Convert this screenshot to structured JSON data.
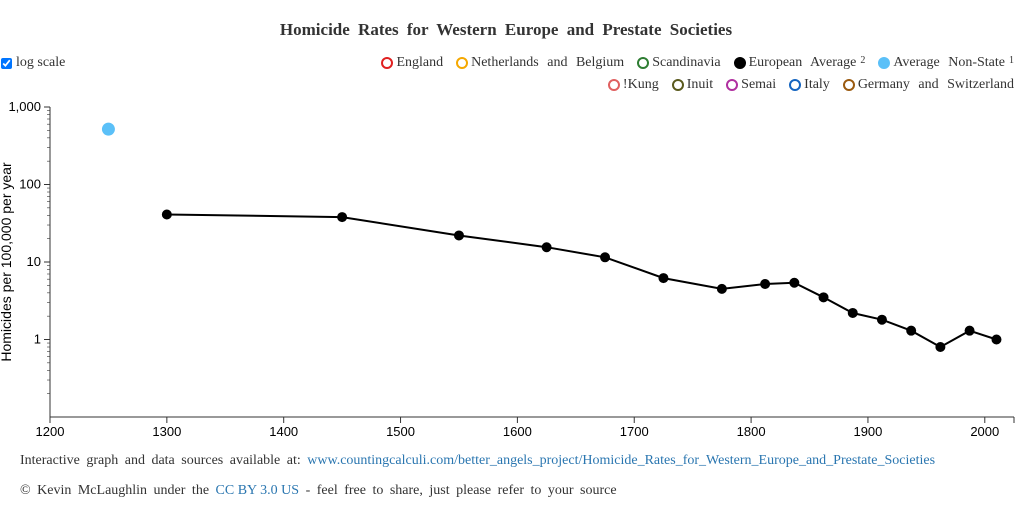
{
  "chart_data": {
    "type": "scatter",
    "title": "Homicide Rates for Western Europe and Prestate Societies",
    "ylabel": "Homicides per 100,000 per year",
    "xlabel": "",
    "xlim": [
      1200,
      2025
    ],
    "ylim": [
      0.1,
      1000
    ],
    "yscale": "log",
    "x_ticks": [
      "1200",
      "1300",
      "1400",
      "1500",
      "1600",
      "1700",
      "1800",
      "1900",
      "2000"
    ],
    "y_ticks": [
      {
        "value": 1000,
        "label": "1,000"
      },
      {
        "value": 100,
        "label": "100"
      },
      {
        "value": 10,
        "label": "10"
      },
      {
        "value": 1,
        "label": "1"
      }
    ],
    "series": [
      {
        "name": "European Average",
        "note": "2",
        "color": "#000000",
        "filled": true,
        "line": true,
        "points": [
          {
            "x": 1300,
            "y": 41
          },
          {
            "x": 1450,
            "y": 38
          },
          {
            "x": 1550,
            "y": 22
          },
          {
            "x": 1625,
            "y": 15.5
          },
          {
            "x": 1675,
            "y": 11.5
          },
          {
            "x": 1725,
            "y": 6.2
          },
          {
            "x": 1775,
            "y": 4.5
          },
          {
            "x": 1812,
            "y": 5.2
          },
          {
            "x": 1837,
            "y": 5.4
          },
          {
            "x": 1862,
            "y": 3.5
          },
          {
            "x": 1887,
            "y": 2.2
          },
          {
            "x": 1912,
            "y": 1.8
          },
          {
            "x": 1937,
            "y": 1.3
          },
          {
            "x": 1962,
            "y": 0.8
          },
          {
            "x": 1987,
            "y": 1.3
          },
          {
            "x": 2010,
            "y": 1.0
          }
        ]
      },
      {
        "name": "Average Non-State",
        "note": "1",
        "color": "#5bc0f8",
        "filled": true,
        "line": false,
        "points": [
          {
            "x": 1250,
            "y": 518
          }
        ]
      }
    ]
  },
  "controls": {
    "log_scale_label": "log scale",
    "log_scale_checked": true
  },
  "legend": {
    "row1": [
      {
        "label": "England",
        "color": "#e02020",
        "filled": false,
        "sup": ""
      },
      {
        "label": "Netherlands and Belgium",
        "color": "#f5a800",
        "filled": false,
        "sup": ""
      },
      {
        "label": "Scandinavia",
        "color": "#2e7d32",
        "filled": false,
        "sup": ""
      },
      {
        "label": "European Average",
        "color": "#000000",
        "filled": true,
        "sup": "2"
      },
      {
        "label": "Average Non-State",
        "color": "#5bc0f8",
        "filled": true,
        "sup": "1"
      }
    ],
    "row2": [
      {
        "label": "!Kung",
        "color": "#e06060",
        "filled": false,
        "sup": ""
      },
      {
        "label": "Inuit",
        "color": "#5a5a1e",
        "filled": false,
        "sup": ""
      },
      {
        "label": "Semai",
        "color": "#b030a0",
        "filled": false,
        "sup": ""
      },
      {
        "label": "Italy",
        "color": "#1565c0",
        "filled": false,
        "sup": ""
      },
      {
        "label": "Germany and Switzerland",
        "color": "#9a5a10",
        "filled": false,
        "sup": ""
      }
    ]
  },
  "footer": {
    "line1_prefix": "Interactive graph and data sources available at:",
    "line1_link": "www.countingcalculi.com/better_angels_project/Homicide_Rates_for_Western_Europe_and_Prestate_Societies",
    "line2_prefix": "© Kevin McLaughlin under the",
    "line2_license": "CC BY 3.0 US",
    "line2_suffix": "- feel free to share, just please refer to your source"
  },
  "colors": {
    "link": "#2a76b0",
    "text": "#333333",
    "axis": "#333333"
  }
}
